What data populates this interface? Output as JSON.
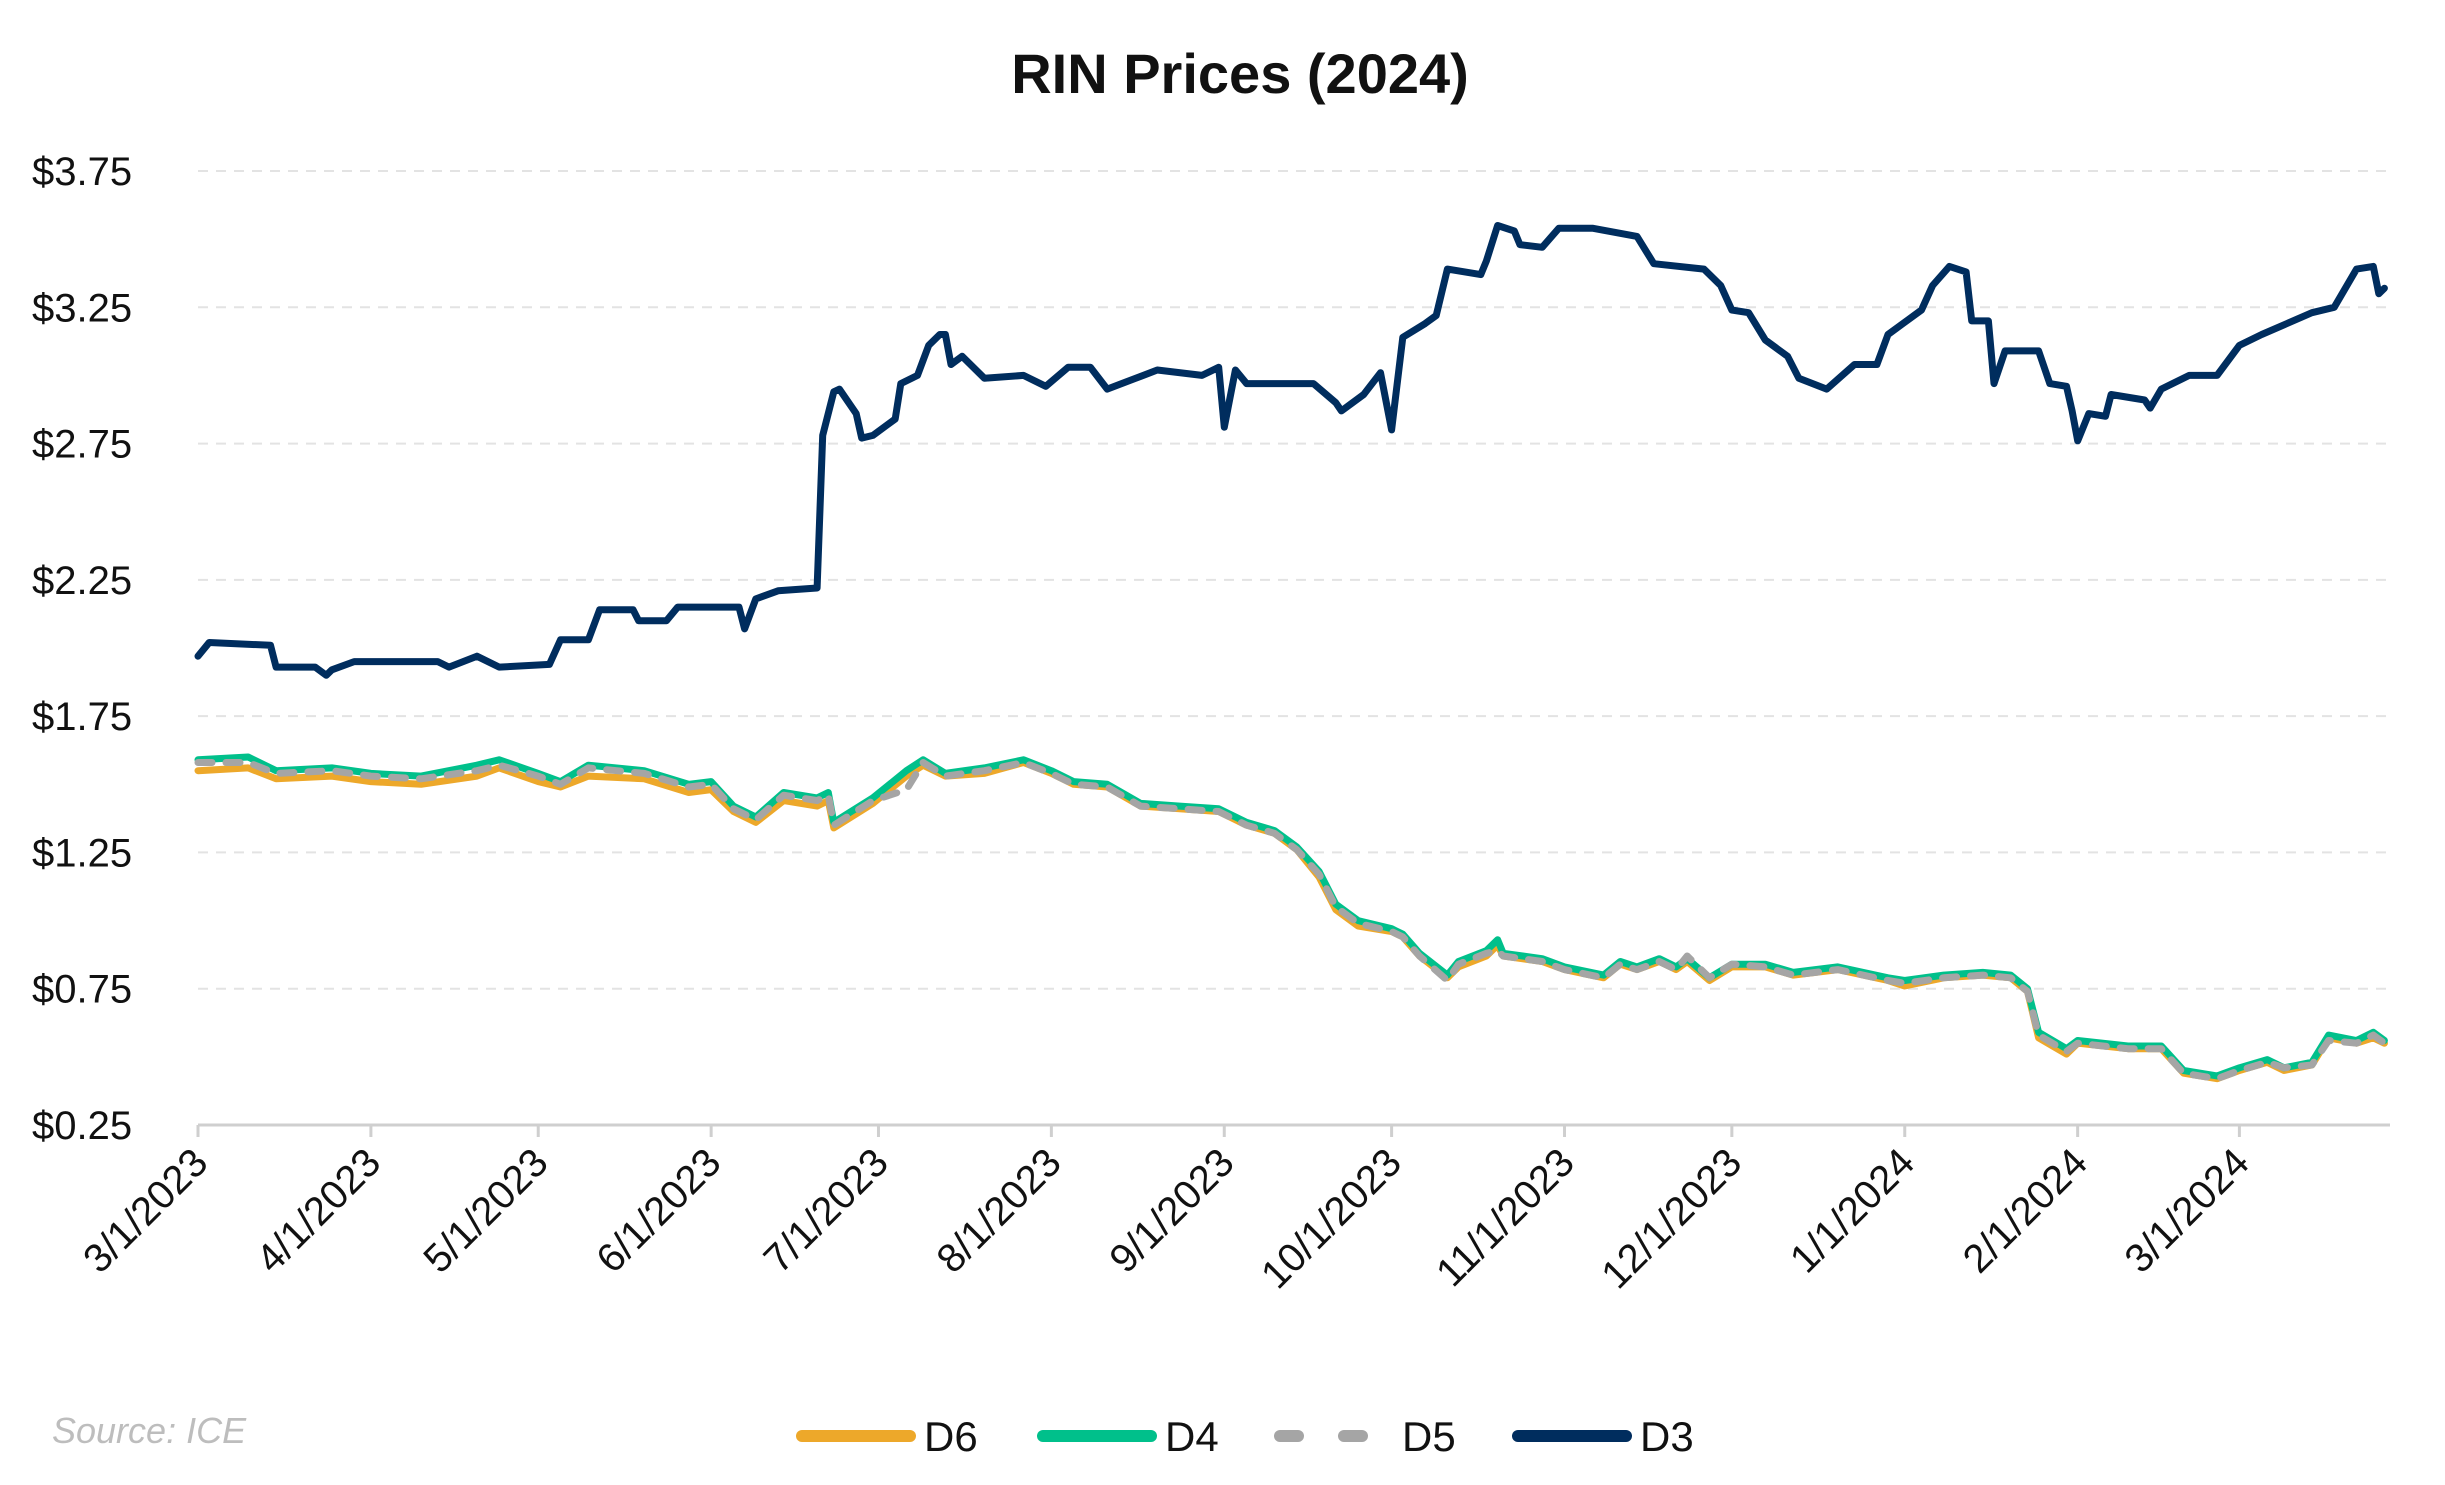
{
  "chart_data": {
    "type": "line",
    "title": "RIN Prices (2024)",
    "source": "Source: ICE",
    "xlabel": "",
    "ylabel": "",
    "xlim": [
      "2023-03-01",
      "2024-03-28"
    ],
    "ylim": [
      0.25,
      3.75
    ],
    "y_ticks": [
      0.25,
      0.75,
      1.25,
      1.75,
      2.25,
      2.75,
      3.25,
      3.75
    ],
    "y_tick_labels": [
      "$0.25",
      "$0.75",
      "$1.25",
      "$1.75",
      "$2.25",
      "$2.75",
      "$3.25",
      "$3.75"
    ],
    "x_ticks": [
      "2023-03-01",
      "2023-04-01",
      "2023-05-01",
      "2023-06-01",
      "2023-07-01",
      "2023-08-01",
      "2023-09-01",
      "2023-10-01",
      "2023-11-01",
      "2023-12-01",
      "2024-01-01",
      "2024-02-01",
      "2024-03-01"
    ],
    "x_tick_labels": [
      "3/1/2023",
      "4/1/2023",
      "5/1/2023",
      "6/1/2023",
      "7/1/2023",
      "8/1/2023",
      "9/1/2023",
      "10/1/2023",
      "11/1/2023",
      "12/1/2023",
      "1/1/2024",
      "2/1/2024",
      "3/1/2024"
    ],
    "grid": "horizontal dashed",
    "legend_position": "bottom",
    "series": [
      {
        "name": "D6",
        "color": "#EDA82A",
        "dash": false,
        "x": [
          "2023-03-01",
          "2023-03-10",
          "2023-03-15",
          "2023-03-25",
          "2023-04-01",
          "2023-04-10",
          "2023-04-20",
          "2023-04-24",
          "2023-05-01",
          "2023-05-05",
          "2023-05-10",
          "2023-05-20",
          "2023-05-28",
          "2023-06-01",
          "2023-06-05",
          "2023-06-09",
          "2023-06-14",
          "2023-06-20",
          "2023-06-22",
          "2023-06-23",
          "2023-06-30",
          "2023-07-06",
          "2023-07-09",
          "2023-07-13",
          "2023-07-20",
          "2023-07-27",
          "2023-08-01",
          "2023-08-05",
          "2023-08-11",
          "2023-08-17",
          "2023-08-24",
          "2023-08-31",
          "2023-09-05",
          "2023-09-10",
          "2023-09-14",
          "2023-09-18",
          "2023-09-21",
          "2023-09-25",
          "2023-10-01",
          "2023-10-03",
          "2023-10-06",
          "2023-10-11",
          "2023-10-13",
          "2023-10-18",
          "2023-10-20",
          "2023-10-21",
          "2023-10-28",
          "2023-11-01",
          "2023-11-08",
          "2023-11-11",
          "2023-11-14",
          "2023-11-18",
          "2023-11-21",
          "2023-11-23",
          "2023-11-27",
          "2023-12-01",
          "2023-12-07",
          "2023-12-12",
          "2023-12-20",
          "2023-12-29",
          "2024-01-01",
          "2024-01-08",
          "2024-01-15",
          "2024-01-20",
          "2024-01-23",
          "2024-01-25",
          "2024-01-30",
          "2024-02-01",
          "2024-02-10",
          "2024-02-16",
          "2024-02-20",
          "2024-02-26",
          "2024-03-01",
          "2024-03-06",
          "2024-03-09",
          "2024-03-14",
          "2024-03-17",
          "2024-03-22",
          "2024-03-25",
          "2024-03-27"
        ],
        "y": [
          1.55,
          1.56,
          1.52,
          1.53,
          1.51,
          1.5,
          1.53,
          1.56,
          1.51,
          1.49,
          1.53,
          1.52,
          1.47,
          1.48,
          1.4,
          1.36,
          1.44,
          1.42,
          1.44,
          1.34,
          1.43,
          1.53,
          1.57,
          1.53,
          1.54,
          1.58,
          1.54,
          1.5,
          1.49,
          1.42,
          1.41,
          1.4,
          1.35,
          1.32,
          1.26,
          1.16,
          1.04,
          0.98,
          0.96,
          0.94,
          0.87,
          0.79,
          0.83,
          0.87,
          0.91,
          0.87,
          0.85,
          0.82,
          0.79,
          0.84,
          0.82,
          0.85,
          0.82,
          0.85,
          0.78,
          0.83,
          0.83,
          0.8,
          0.82,
          0.78,
          0.76,
          0.79,
          0.8,
          0.79,
          0.74,
          0.57,
          0.51,
          0.55,
          0.53,
          0.53,
          0.44,
          0.42,
          0.45,
          0.48,
          0.45,
          0.47,
          0.57,
          0.55,
          0.57,
          0.55
        ]
      },
      {
        "name": "D4",
        "color": "#00C08B",
        "dash": false,
        "x": [
          "2023-03-01",
          "2023-03-10",
          "2023-03-15",
          "2023-03-25",
          "2023-04-01",
          "2023-04-10",
          "2023-04-20",
          "2023-04-24",
          "2023-05-01",
          "2023-05-05",
          "2023-05-10",
          "2023-05-20",
          "2023-05-28",
          "2023-06-01",
          "2023-06-05",
          "2023-06-09",
          "2023-06-14",
          "2023-06-20",
          "2023-06-22",
          "2023-06-23",
          "2023-06-30",
          "2023-07-06",
          "2023-07-09",
          "2023-07-13",
          "2023-07-20",
          "2023-07-27",
          "2023-08-01",
          "2023-08-05",
          "2023-08-11",
          "2023-08-17",
          "2023-08-24",
          "2023-08-31",
          "2023-09-05",
          "2023-09-10",
          "2023-09-14",
          "2023-09-18",
          "2023-09-21",
          "2023-09-25",
          "2023-10-01",
          "2023-10-03",
          "2023-10-06",
          "2023-10-11",
          "2023-10-13",
          "2023-10-18",
          "2023-10-20",
          "2023-10-21",
          "2023-10-28",
          "2023-11-01",
          "2023-11-08",
          "2023-11-11",
          "2023-11-14",
          "2023-11-18",
          "2023-11-21",
          "2023-11-23",
          "2023-11-27",
          "2023-12-01",
          "2023-12-07",
          "2023-12-12",
          "2023-12-20",
          "2023-12-29",
          "2024-01-01",
          "2024-01-08",
          "2024-01-15",
          "2024-01-20",
          "2024-01-23",
          "2024-01-25",
          "2024-01-30",
          "2024-02-01",
          "2024-02-10",
          "2024-02-16",
          "2024-02-20",
          "2024-02-26",
          "2024-03-01",
          "2024-03-06",
          "2024-03-09",
          "2024-03-14",
          "2024-03-17",
          "2024-03-22",
          "2024-03-25",
          "2024-03-27"
        ],
        "y": [
          1.59,
          1.6,
          1.55,
          1.56,
          1.54,
          1.53,
          1.57,
          1.59,
          1.54,
          1.51,
          1.57,
          1.55,
          1.5,
          1.51,
          1.42,
          1.38,
          1.47,
          1.45,
          1.47,
          1.36,
          1.45,
          1.55,
          1.59,
          1.54,
          1.56,
          1.59,
          1.55,
          1.51,
          1.5,
          1.43,
          1.42,
          1.41,
          1.36,
          1.33,
          1.27,
          1.18,
          1.06,
          1.0,
          0.97,
          0.95,
          0.88,
          0.8,
          0.85,
          0.89,
          0.93,
          0.88,
          0.86,
          0.83,
          0.8,
          0.85,
          0.83,
          0.86,
          0.83,
          0.86,
          0.79,
          0.84,
          0.84,
          0.81,
          0.83,
          0.79,
          0.78,
          0.8,
          0.81,
          0.8,
          0.75,
          0.59,
          0.53,
          0.56,
          0.54,
          0.54,
          0.45,
          0.43,
          0.46,
          0.49,
          0.46,
          0.48,
          0.58,
          0.56,
          0.59,
          0.56
        ]
      },
      {
        "name": "D5",
        "color": "#A5A5A5",
        "dash": true,
        "x": [
          "2023-03-01",
          "2023-03-10",
          "2023-03-15",
          "2023-03-25",
          "2023-04-01",
          "2023-04-10",
          "2023-04-20",
          "2023-04-24",
          "2023-05-01",
          "2023-05-05",
          "2023-05-10",
          "2023-05-20",
          "2023-05-28",
          "2023-06-01",
          "2023-06-05",
          "2023-06-09",
          "2023-06-14",
          "2023-06-20",
          "2023-06-22",
          "2023-06-23",
          "2023-06-30",
          "2023-07-06",
          "2023-07-09",
          "2023-07-13",
          "2023-07-20",
          "2023-07-27",
          "2023-08-01",
          "2023-08-05",
          "2023-08-11",
          "2023-08-17",
          "2023-08-24",
          "2023-08-31",
          "2023-09-05",
          "2023-09-10",
          "2023-09-14",
          "2023-09-18",
          "2023-09-21",
          "2023-09-25",
          "2023-10-01",
          "2023-10-03",
          "2023-10-06",
          "2023-10-11",
          "2023-10-13",
          "2023-10-18",
          "2023-10-20",
          "2023-10-21",
          "2023-10-28",
          "2023-11-01",
          "2023-11-08",
          "2023-11-11",
          "2023-11-14",
          "2023-11-18",
          "2023-11-21",
          "2023-11-23",
          "2023-11-27",
          "2023-12-01",
          "2023-12-07",
          "2023-12-12",
          "2023-12-20",
          "2023-12-29",
          "2024-01-01",
          "2024-01-08",
          "2024-01-15",
          "2024-01-20",
          "2024-01-23",
          "2024-01-25",
          "2024-01-30",
          "2024-02-01",
          "2024-02-10",
          "2024-02-16",
          "2024-02-20",
          "2024-02-26",
          "2024-03-01",
          "2024-03-06",
          "2024-03-09",
          "2024-03-14",
          "2024-03-17",
          "2024-03-22",
          "2024-03-25",
          "2024-03-27"
        ],
        "y": [
          1.58,
          1.58,
          1.54,
          1.55,
          1.53,
          1.52,
          1.55,
          1.57,
          1.53,
          1.5,
          1.56,
          1.54,
          1.49,
          1.5,
          1.41,
          1.37,
          1.46,
          1.44,
          1.46,
          1.35,
          1.44,
          1.48,
          1.58,
          1.53,
          1.55,
          1.58,
          1.54,
          1.5,
          1.49,
          1.42,
          1.41,
          1.4,
          1.35,
          1.32,
          1.26,
          1.17,
          1.05,
          0.99,
          0.96,
          0.94,
          0.87,
          0.78,
          0.84,
          0.88,
          0.89,
          0.87,
          0.85,
          0.82,
          0.79,
          0.84,
          0.82,
          0.85,
          0.82,
          0.87,
          0.79,
          0.84,
          0.83,
          0.8,
          0.82,
          0.78,
          0.77,
          0.79,
          0.8,
          0.79,
          0.74,
          0.58,
          0.52,
          0.55,
          0.53,
          0.53,
          0.44,
          0.42,
          0.45,
          0.48,
          0.46,
          0.47,
          0.56,
          0.55,
          0.58,
          0.55
        ]
      },
      {
        "name": "D3",
        "color": "#002D5E",
        "dash": false,
        "x": [
          "2023-03-01",
          "2023-03-03",
          "2023-03-14",
          "2023-03-15",
          "2023-03-22",
          "2023-03-24",
          "2023-03-25",
          "2023-03-29",
          "2023-04-13",
          "2023-04-15",
          "2023-04-20",
          "2023-04-24",
          "2023-05-03",
          "2023-05-05",
          "2023-05-10",
          "2023-05-12",
          "2023-05-18",
          "2023-05-19",
          "2023-05-24",
          "2023-05-26",
          "2023-06-06",
          "2023-06-07",
          "2023-06-09",
          "2023-06-13",
          "2023-06-20",
          "2023-06-21",
          "2023-06-23",
          "2023-06-24",
          "2023-06-27",
          "2023-06-28",
          "2023-06-30",
          "2023-07-04",
          "2023-07-05",
          "2023-07-08",
          "2023-07-10",
          "2023-07-12",
          "2023-07-13",
          "2023-07-14",
          "2023-07-16",
          "2023-07-20",
          "2023-07-27",
          "2023-07-31",
          "2023-08-04",
          "2023-08-08",
          "2023-08-11",
          "2023-08-20",
          "2023-08-28",
          "2023-08-31",
          "2023-09-01",
          "2023-09-03",
          "2023-09-05",
          "2023-09-17",
          "2023-09-21",
          "2023-09-22",
          "2023-09-26",
          "2023-09-29",
          "2023-10-01",
          "2023-10-03",
          "2023-10-07",
          "2023-10-09",
          "2023-10-11",
          "2023-10-17",
          "2023-10-18",
          "2023-10-20",
          "2023-10-23",
          "2023-10-24",
          "2023-10-28",
          "2023-10-31",
          "2023-11-06",
          "2023-11-14",
          "2023-11-17",
          "2023-11-26",
          "2023-11-29",
          "2023-12-01",
          "2023-12-04",
          "2023-12-07",
          "2023-12-11",
          "2023-12-13",
          "2023-12-18",
          "2023-12-23",
          "2023-12-27",
          "2023-12-29",
          "2024-01-04",
          "2024-01-06",
          "2024-01-09",
          "2024-01-12",
          "2024-01-13",
          "2024-01-16",
          "2024-01-17",
          "2024-01-19",
          "2024-01-25",
          "2024-01-27",
          "2024-01-30",
          "2024-01-31",
          "2024-02-01",
          "2024-02-03",
          "2024-02-06",
          "2024-02-07",
          "2024-02-13",
          "2024-02-14",
          "2024-02-16",
          "2024-02-21",
          "2024-02-26",
          "2024-03-01",
          "2024-03-05",
          "2024-03-14",
          "2024-03-18",
          "2024-03-22",
          "2024-03-25",
          "2024-03-26",
          "2024-03-27"
        ],
        "y": [
          1.97,
          2.02,
          2.01,
          1.93,
          1.93,
          1.9,
          1.92,
          1.95,
          1.95,
          1.93,
          1.97,
          1.93,
          1.94,
          2.03,
          2.03,
          2.14,
          2.14,
          2.1,
          2.1,
          2.15,
          2.15,
          2.07,
          2.18,
          2.21,
          2.22,
          2.78,
          2.94,
          2.95,
          2.86,
          2.77,
          2.78,
          2.84,
          2.97,
          3.0,
          3.11,
          3.15,
          3.15,
          3.04,
          3.07,
          2.99,
          3.0,
          2.96,
          3.03,
          3.03,
          2.95,
          3.02,
          3.0,
          3.03,
          2.81,
          3.02,
          2.97,
          2.97,
          2.9,
          2.87,
          2.93,
          3.01,
          2.8,
          3.14,
          3.19,
          3.22,
          3.39,
          3.37,
          3.42,
          3.55,
          3.53,
          3.48,
          3.47,
          3.54,
          3.54,
          3.51,
          3.41,
          3.39,
          3.33,
          3.24,
          3.23,
          3.13,
          3.07,
          2.99,
          2.95,
          3.04,
          3.04,
          3.15,
          3.24,
          3.33,
          3.4,
          3.38,
          3.2,
          3.2,
          2.97,
          3.09,
          3.09,
          2.97,
          2.96,
          2.87,
          2.76,
          2.86,
          2.85,
          2.93,
          2.91,
          2.88,
          2.95,
          3.0,
          3.0,
          3.11,
          3.15,
          3.23,
          3.25,
          3.39,
          3.4,
          3.3,
          3.32
        ]
      }
    ]
  }
}
